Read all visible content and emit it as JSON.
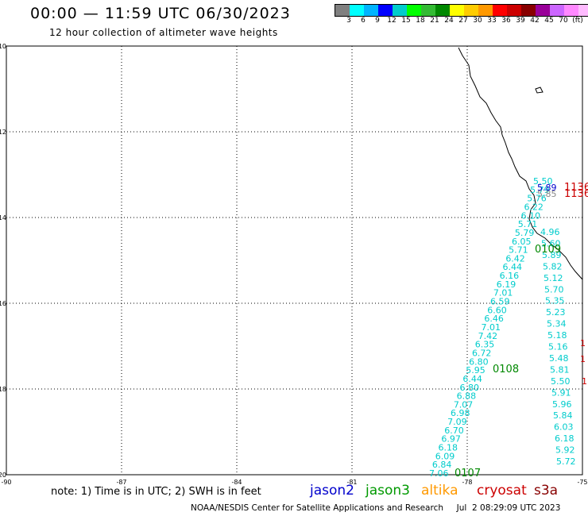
{
  "header": {
    "title": "00:00 — 11:59 UTC 06/30/2023",
    "subtitle": "12 hour collection of altimeter wave heights"
  },
  "colorbar": {
    "colors": [
      "#808080",
      "#00ffff",
      "#00b4ff",
      "#0000ff",
      "#00cccc",
      "#00ff00",
      "#33bb33",
      "#008800",
      "#ffff00",
      "#ffcc00",
      "#ff9900",
      "#ff0000",
      "#cc0000",
      "#880000",
      "#990099",
      "#cc66ff",
      "#ff88ff",
      "#ffbbff"
    ],
    "labels": [
      "3",
      "6",
      "9",
      "12",
      "15",
      "18",
      "21",
      "24",
      "27",
      "30",
      "33",
      "36",
      "39",
      "42",
      "45",
      "70",
      "(ft)"
    ]
  },
  "axes": {
    "y_labels": [
      "10",
      "12",
      "14",
      "16",
      "18",
      "20"
    ],
    "x_labels": [
      "-90",
      "-87",
      "-84",
      "-81",
      "-78",
      "-75"
    ]
  },
  "legend": {
    "note": "note: 1) Time is in UTC; 2) SWH is in feet",
    "satellites": [
      {
        "label": "jason2",
        "color": "#0000cc"
      },
      {
        "label": "jason3",
        "color": "#009900"
      },
      {
        "label": "altika",
        "color": "#ff9900"
      },
      {
        "label": "cryosat",
        "color": "#cc0000"
      },
      {
        "label": "s3a",
        "color": "#880000"
      }
    ]
  },
  "credit": "NOAA/NESDIS Center for Satellite Applications and Research     Jul  2 08:29:09 UTC 2023",
  "track_a": [
    "5.50",
    "5.79",
    "5.76",
    "6.22",
    "6.10",
    "5.71",
    "5.79",
    "6.05",
    "5.71",
    "6.42",
    "6.44",
    "6.16",
    "6.19",
    "7.01",
    "6.59",
    "6.60",
    "6.46",
    "7.01",
    "7.42",
    "6.35",
    "6.72",
    "6.80",
    "5.95",
    "6.44",
    "6.80",
    "6.88",
    "7.07",
    "6.98",
    "7.09",
    "6.70",
    "6.97",
    "6.18",
    "6.09",
    "6.84",
    "7.06"
  ],
  "track_b": [
    "4.96",
    "5.60",
    "5.89",
    "5.82",
    "5.12",
    "5.70",
    "5.35",
    "5.23",
    "5.34",
    "5.18",
    "5.16",
    "5.48",
    "5.81",
    "5.50",
    "5.91",
    "5.96",
    "5.84",
    "6.03",
    "6.18",
    "5.92",
    "5.72"
  ],
  "other_labels": [
    {
      "text": "5.89",
      "color": "#0000cc"
    },
    {
      "text": "5.85",
      "color": "#888888"
    },
    {
      "text": "0109",
      "color": "#008800"
    },
    {
      "text": "0108",
      "color": "#008800"
    },
    {
      "text": "0107",
      "color": "#008800"
    },
    {
      "text": "1136",
      "color": "#cc0000"
    },
    {
      "text": "1136",
      "color": "#cc0000"
    },
    {
      "text": "1",
      "color": "#cc0000"
    },
    {
      "text": "1",
      "color": "#cc0000"
    },
    {
      "text": "1",
      "color": "#cc0000"
    }
  ]
}
